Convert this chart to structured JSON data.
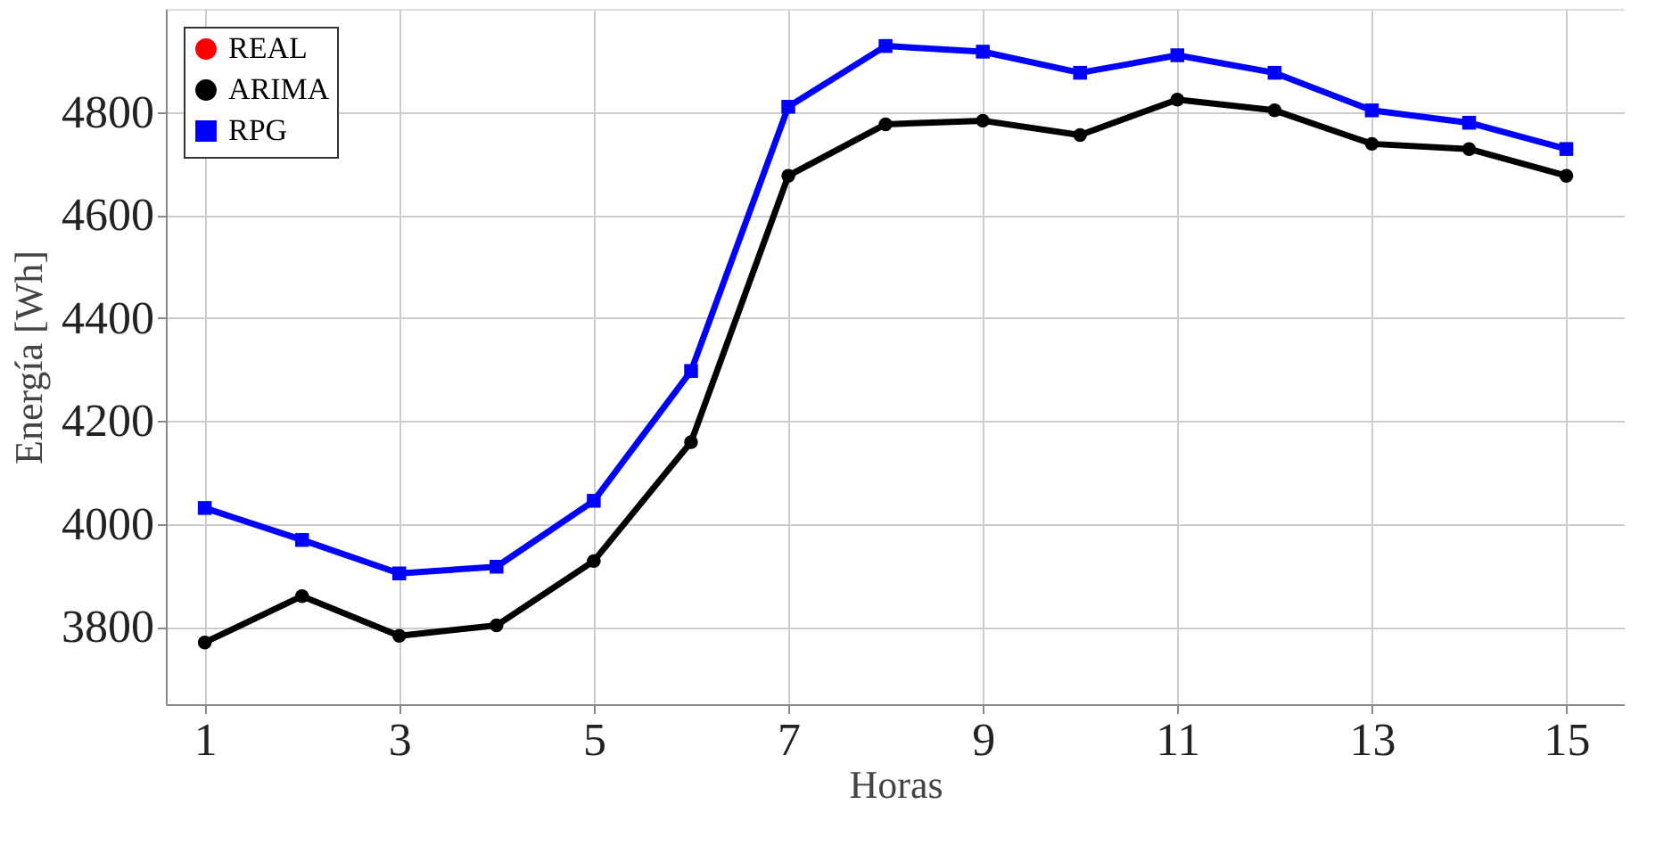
{
  "chart_data": {
    "type": "line",
    "xlabel": "Horas",
    "ylabel": "Energía [Wh]",
    "x": [
      1,
      2,
      3,
      4,
      5,
      6,
      7,
      8,
      9,
      10,
      11,
      12,
      13,
      14,
      15
    ],
    "series": [
      {
        "name": "REAL",
        "color": "#ff0000",
        "marker": "circle",
        "values": [
          null,
          null,
          null,
          null,
          null,
          null,
          null,
          null,
          null,
          null,
          null,
          null,
          null,
          null,
          null
        ]
      },
      {
        "name": "ARIMA",
        "color": "#000000",
        "marker": "circle",
        "values": [
          3770,
          3860,
          3783,
          3803,
          3928,
          4159,
          4676,
          4776,
          4783,
          4755,
          4824,
          4803,
          4738,
          4728,
          4676
        ]
      },
      {
        "name": "RPG",
        "color": "#0000ff",
        "marker": "square",
        "values": [
          4031,
          3969,
          3904,
          3917,
          4045,
          4297,
          4810,
          4928,
          4917,
          4876,
          4910,
          4876,
          4803,
          4779,
          4728
        ]
      }
    ],
    "xlim": [
      0.6,
      15.6
    ],
    "xticks": [
      1,
      3,
      5,
      7,
      9,
      11,
      13,
      15
    ],
    "ylim": [
      3650,
      5000
    ],
    "yticks": [
      3800,
      4000,
      4200,
      4400,
      4600,
      4800
    ],
    "grid": true,
    "legend": "top left",
    "line_style": "solid"
  }
}
